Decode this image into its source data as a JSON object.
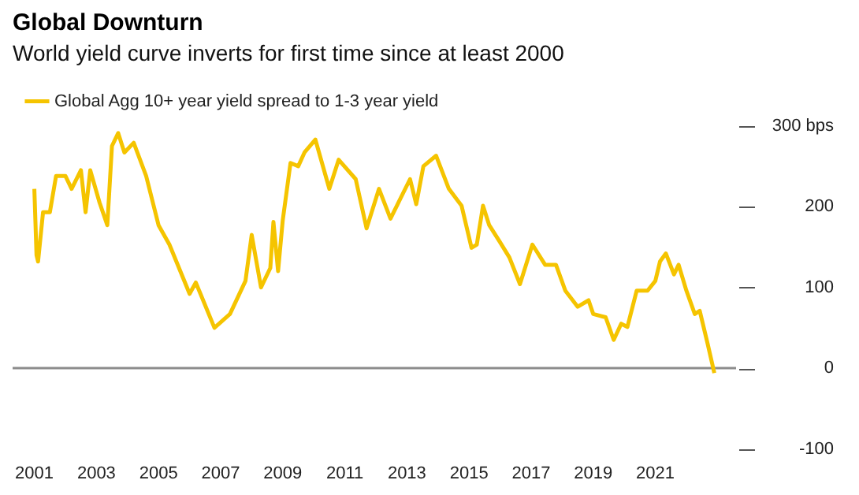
{
  "chart_data": {
    "type": "line",
    "title": "Global Downturn",
    "subtitle": "World yield curve inverts for first time since at least 2000",
    "x": [
      2001.0,
      2001.07,
      2001.12,
      2001.28,
      2001.5,
      2001.7,
      2002.0,
      2002.2,
      2002.5,
      2002.65,
      2002.8,
      2003.1,
      2003.35,
      2003.5,
      2003.7,
      2003.9,
      2004.2,
      2004.6,
      2005.0,
      2005.35,
      2006.0,
      2006.2,
      2006.8,
      2007.3,
      2007.8,
      2008.0,
      2008.3,
      2008.6,
      2008.7,
      2008.85,
      2009.0,
      2009.25,
      2009.5,
      2009.7,
      2010.05,
      2010.5,
      2010.8,
      2011.35,
      2011.7,
      2012.1,
      2012.47,
      2012.7,
      2013.1,
      2013.3,
      2013.53,
      2013.94,
      2014.35,
      2014.76,
      2015.08,
      2015.25,
      2015.45,
      2015.65,
      2015.98,
      2016.3,
      2016.64,
      2017.04,
      2017.45,
      2017.8,
      2018.1,
      2018.5,
      2018.85,
      2019.0,
      2019.4,
      2019.66,
      2019.9,
      2020.1,
      2020.4,
      2020.75,
      2021.0,
      2021.15,
      2021.34,
      2021.6,
      2021.75,
      2022.0,
      2022.27,
      2022.43,
      2022.68,
      2022.9
    ],
    "series": [
      {
        "name": "Global Agg 10+ year yield spread to 1-3 year yield",
        "color": "#f5c400",
        "values": [
          222,
          140,
          132,
          193,
          193,
          238,
          238,
          222,
          245,
          193,
          245,
          205,
          177,
          275,
          291,
          267,
          279,
          238,
          177,
          153,
          92,
          106,
          50,
          67,
          108,
          165,
          100,
          124,
          181,
          120,
          183,
          254,
          250,
          267,
          283,
          222,
          258,
          234,
          173,
          222,
          185,
          203,
          234,
          203,
          250,
          263,
          222,
          201,
          149,
          153,
          201,
          177,
          157,
          137,
          104,
          153,
          128,
          128,
          96,
          76,
          84,
          67,
          63,
          35,
          55,
          51,
          96,
          96,
          108,
          132,
          142,
          116,
          128,
          96,
          67,
          71,
          31,
          -6
        ]
      }
    ],
    "xlim": [
      2000.3,
      2023.6
    ],
    "xticks": [
      2001,
      2003,
      2005,
      2007,
      2009,
      2011,
      2013,
      2015,
      2017,
      2019,
      2021
    ],
    "ylim": [
      -100,
      300
    ],
    "yticks": [
      {
        "value": 300,
        "label": "300 bps"
      },
      200,
      100,
      0,
      -100
    ],
    "ref_lines": [
      {
        "axis": "y",
        "value": 0,
        "color": "#8c8c8c"
      }
    ],
    "legend": "top left",
    "grid": false
  }
}
